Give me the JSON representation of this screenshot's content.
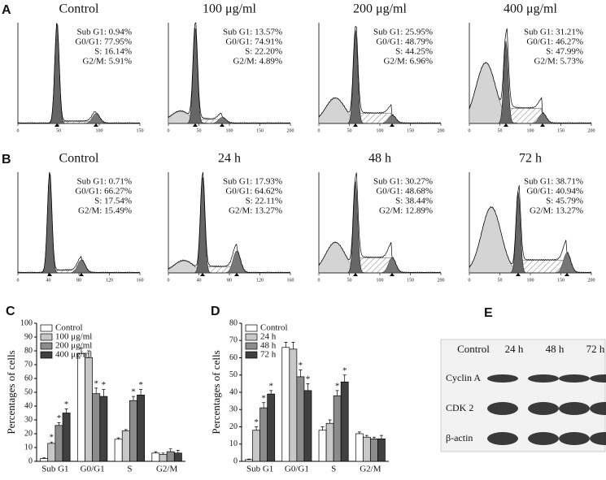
{
  "chart_data": [
    {
      "type": "bar",
      "label": "C",
      "y_label": "Percentages of cells",
      "categories": [
        "Sub G1",
        "G0/G1",
        "S",
        "G2/M"
      ],
      "series": [
        {
          "name": "Control",
          "color": "#ffffff",
          "values": [
            2,
            78,
            16,
            6
          ],
          "errors": [
            0.5,
            4,
            1,
            1
          ],
          "significant": [
            false,
            false,
            false,
            false
          ]
        },
        {
          "name": "100 μg/ml",
          "color": "#c8c8c8",
          "values": [
            13,
            75,
            22,
            5
          ],
          "errors": [
            1,
            5,
            1,
            1
          ],
          "significant": [
            true,
            false,
            false,
            false
          ]
        },
        {
          "name": "200 μg/ml",
          "color": "#8c8c8c",
          "values": [
            26,
            49,
            44,
            7
          ],
          "errors": [
            2,
            4,
            3,
            2
          ],
          "significant": [
            true,
            true,
            true,
            false
          ]
        },
        {
          "name": "400 μg/ml",
          "color": "#404040",
          "values": [
            35,
            47,
            48,
            6
          ],
          "errors": [
            3,
            5,
            4,
            2
          ],
          "significant": [
            true,
            true,
            true,
            false
          ]
        }
      ],
      "significance_label": "*",
      "ylim": [
        0,
        100
      ],
      "yticks": [
        0,
        10,
        20,
        30,
        40,
        50,
        60,
        70,
        80,
        90,
        100
      ]
    },
    {
      "type": "bar",
      "label": "D",
      "y_label": "Percentages of cells",
      "categories": [
        "Sub G1",
        "G0/G1",
        "S",
        "G2/M"
      ],
      "series": [
        {
          "name": "Control",
          "color": "#ffffff",
          "values": [
            1,
            66,
            18,
            16
          ],
          "errors": [
            0.3,
            3,
            2,
            1
          ],
          "significant": [
            false,
            false,
            false,
            false
          ]
        },
        {
          "name": "24 h",
          "color": "#c8c8c8",
          "values": [
            18,
            65,
            22,
            14
          ],
          "errors": [
            2,
            4,
            2,
            1
          ],
          "significant": [
            true,
            false,
            false,
            false
          ]
        },
        {
          "name": "48 h",
          "color": "#8c8c8c",
          "values": [
            31,
            49,
            38,
            13
          ],
          "errors": [
            3,
            4,
            3,
            1
          ],
          "significant": [
            true,
            true,
            true,
            false
          ]
        },
        {
          "name": "72 h",
          "color": "#404040",
          "values": [
            39,
            41,
            46,
            13
          ],
          "errors": [
            2,
            4,
            4,
            2
          ],
          "significant": [
            true,
            true,
            true,
            false
          ]
        }
      ],
      "significance_label": "*",
      "ylim": [
        0,
        80
      ],
      "yticks": [
        0,
        10,
        20,
        30,
        40,
        50,
        60,
        70,
        80
      ]
    }
  ],
  "flow_cytometry": {
    "rows": [
      {
        "label": "A",
        "panels": [
          {
            "title": "Control",
            "stats": [
              "Sub G1: 0.94%",
              "G0/G1: 77.95%",
              "S: 16.14%",
              "G2/M: 5.91%"
            ],
            "xticks": [
              0,
              50,
              100,
              150
            ]
          },
          {
            "title": "100 μg/ml",
            "stats": [
              "Sub G1: 13.57%",
              "G0/G1: 74.91%",
              "S: 22.20%",
              "G2/M: 4.89%"
            ],
            "xticks": [
              0,
              50,
              100,
              150,
              200
            ]
          },
          {
            "title": "200 μg/ml",
            "stats": [
              "Sub G1: 25.95%",
              "G0/G1: 48.79%",
              "S: 44.25%",
              "G2/M: 6.96%"
            ],
            "xticks": [
              0,
              50,
              100,
              150,
              200
            ]
          },
          {
            "title": "400 μg/ml",
            "stats": [
              "Sub G1: 31.21%",
              "G0/G1: 46.27%",
              "S: 47.99%",
              "G2/M: 5.73%"
            ],
            "xticks": [
              0,
              50,
              100,
              150,
              200
            ]
          }
        ]
      },
      {
        "label": "B",
        "panels": [
          {
            "title": "Control",
            "stats": [
              "Sub G1: 0.71%",
              "G0/G1: 66.27%",
              "S: 17.54%",
              "G2/M: 15.49%"
            ],
            "xticks": [
              0,
              40,
              80,
              120,
              160
            ]
          },
          {
            "title": "24 h",
            "stats": [
              "Sub G1: 17.93%",
              "G0/G1: 64.62%",
              "S: 22.11%",
              "G2/M: 13.27%"
            ],
            "xticks": [
              0,
              40,
              80,
              120,
              160
            ]
          },
          {
            "title": "48 h",
            "stats": [
              "Sub G1: 30.27%",
              "G0/G1: 48.68%",
              "S: 38.44%",
              "G2/M: 12.89%"
            ],
            "xticks": [
              0,
              50,
              100,
              150,
              200
            ]
          },
          {
            "title": "72 h",
            "stats": [
              "Sub G1: 38.71%",
              "G0/G1: 40.94%",
              "S: 45.79%",
              "G2/M: 13.27%"
            ],
            "xticks": [
              0,
              50,
              100,
              150,
              200
            ]
          }
        ]
      }
    ]
  },
  "blot": {
    "label": "E",
    "columns": [
      "Control",
      "24 h",
      "48 h",
      "72 h"
    ],
    "rows": [
      "Cyclin A",
      "CDK 2",
      "β-actin"
    ]
  }
}
